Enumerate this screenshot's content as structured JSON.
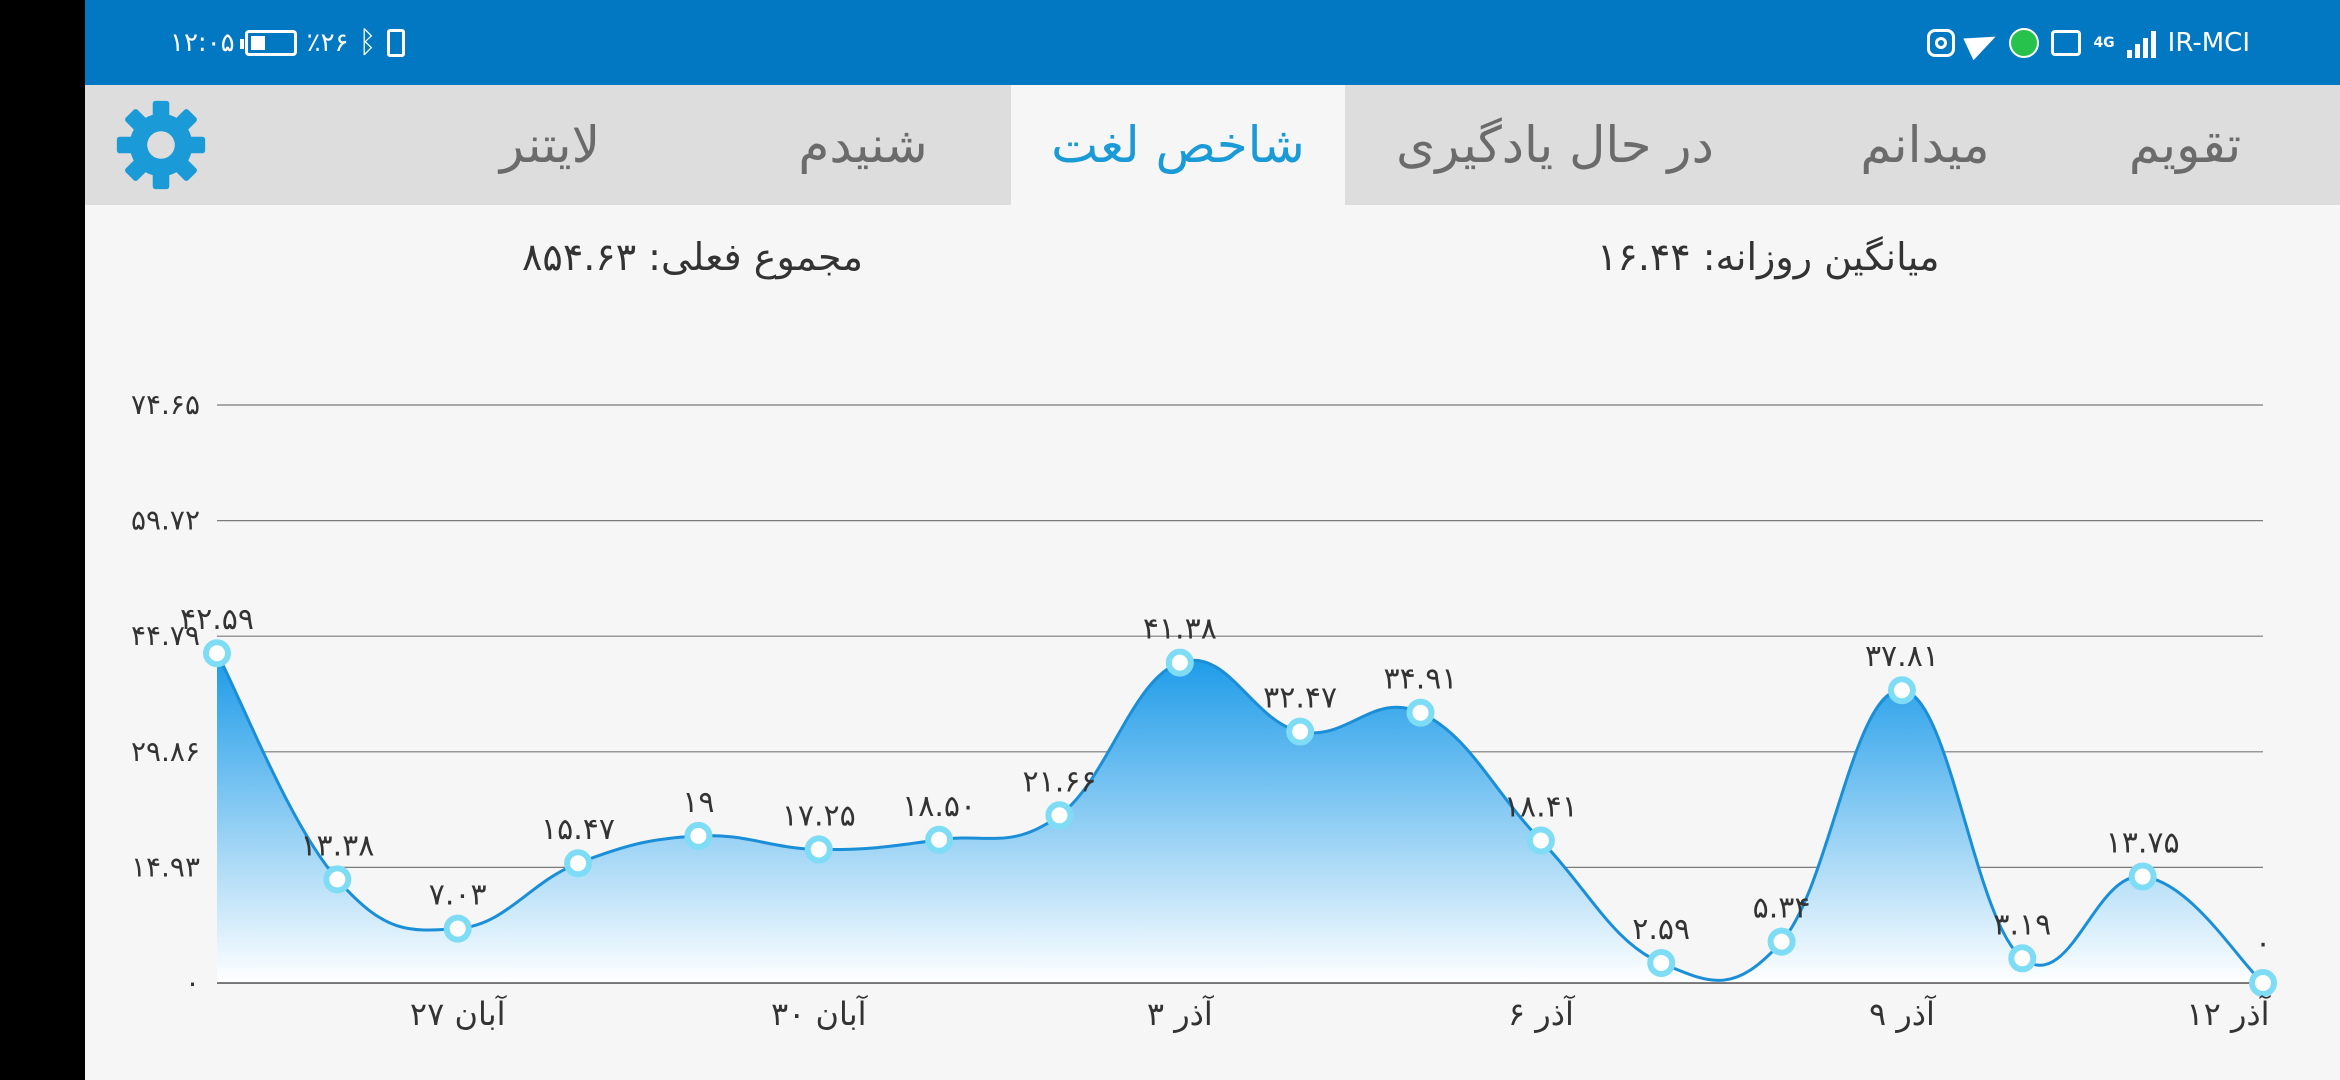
{
  "status_bar": {
    "time": "۱۲:۰۵",
    "battery_percent": "٪۲۶",
    "carrier": "IR-MCI",
    "network_type": "4G",
    "icons": [
      "battery-icon",
      "bluetooth-icon",
      "charging-icon",
      "instagram-icon",
      "telegram-icon",
      "app-icon",
      "cast-icon",
      "signal-icon"
    ]
  },
  "tabs": [
    {
      "label": "تقویم",
      "active": false
    },
    {
      "label": "میدانم",
      "active": false
    },
    {
      "label": "در حال یادگیری",
      "active": false
    },
    {
      "label": "شاخص لغت",
      "active": true
    },
    {
      "label": "شنیدم",
      "active": false
    },
    {
      "label": "لایتنر",
      "active": false
    }
  ],
  "settings_icon": "gear-icon",
  "accent_color": "#1a9ad6",
  "stats": {
    "daily_avg_label": "میانگین روزانه:",
    "daily_avg_value": "۱۶.۴۴",
    "total_label": "مجموع فعلی:",
    "total_value": "۸۵۴.۶۳"
  },
  "chart_data": {
    "type": "area",
    "ylim": [
      0,
      74.65
    ],
    "yticks": [
      0,
      14.93,
      29.86,
      44.79,
      59.72,
      74.65
    ],
    "ytick_labels": [
      "۰",
      "۱۴.۹۳",
      "۲۹.۸۶",
      "۴۴.۷۹",
      "۵۹.۷۲",
      "۷۴.۶۵"
    ],
    "x": [
      0,
      1,
      2,
      3,
      4,
      5,
      6,
      7,
      8,
      9,
      10,
      11,
      12,
      13,
      14,
      15,
      16,
      17
    ],
    "values": [
      42.59,
      13.38,
      7.03,
      15.47,
      19,
      17.25,
      18.5,
      21.66,
      41.38,
      32.47,
      34.91,
      18.41,
      2.59,
      5.34,
      37.81,
      3.19,
      13.75,
      0
    ],
    "value_labels": [
      "۴۲.۵۹",
      "۱۳.۳۸",
      "۷.۰۳",
      "۱۵.۴۷",
      "۱۹",
      "۱۷.۲۵",
      "۱۸.۵۰",
      "۲۱.۶۶",
      "۴۱.۳۸",
      "۳۲.۴۷",
      "۳۴.۹۱",
      "۱۸.۴۱",
      "۲.۵۹",
      "۵.۳۴",
      "۳۷.۸۱",
      "۳.۱۹",
      "۱۳.۷۵",
      "۰"
    ],
    "x_tick_positions": [
      2,
      5,
      8,
      11,
      14,
      17
    ],
    "x_tick_labels": [
      "۲۷ آبان",
      "۳۰ آبان",
      "۳ آذر",
      "۶ آذر",
      "۹ آذر",
      "۱۲ آذر"
    ],
    "grid": true,
    "fill_color_top": "#1a9ae8",
    "fill_color_bottom": "#ffffff",
    "line_color": "#1a8fd8",
    "marker_color": "#7fdcf5"
  }
}
